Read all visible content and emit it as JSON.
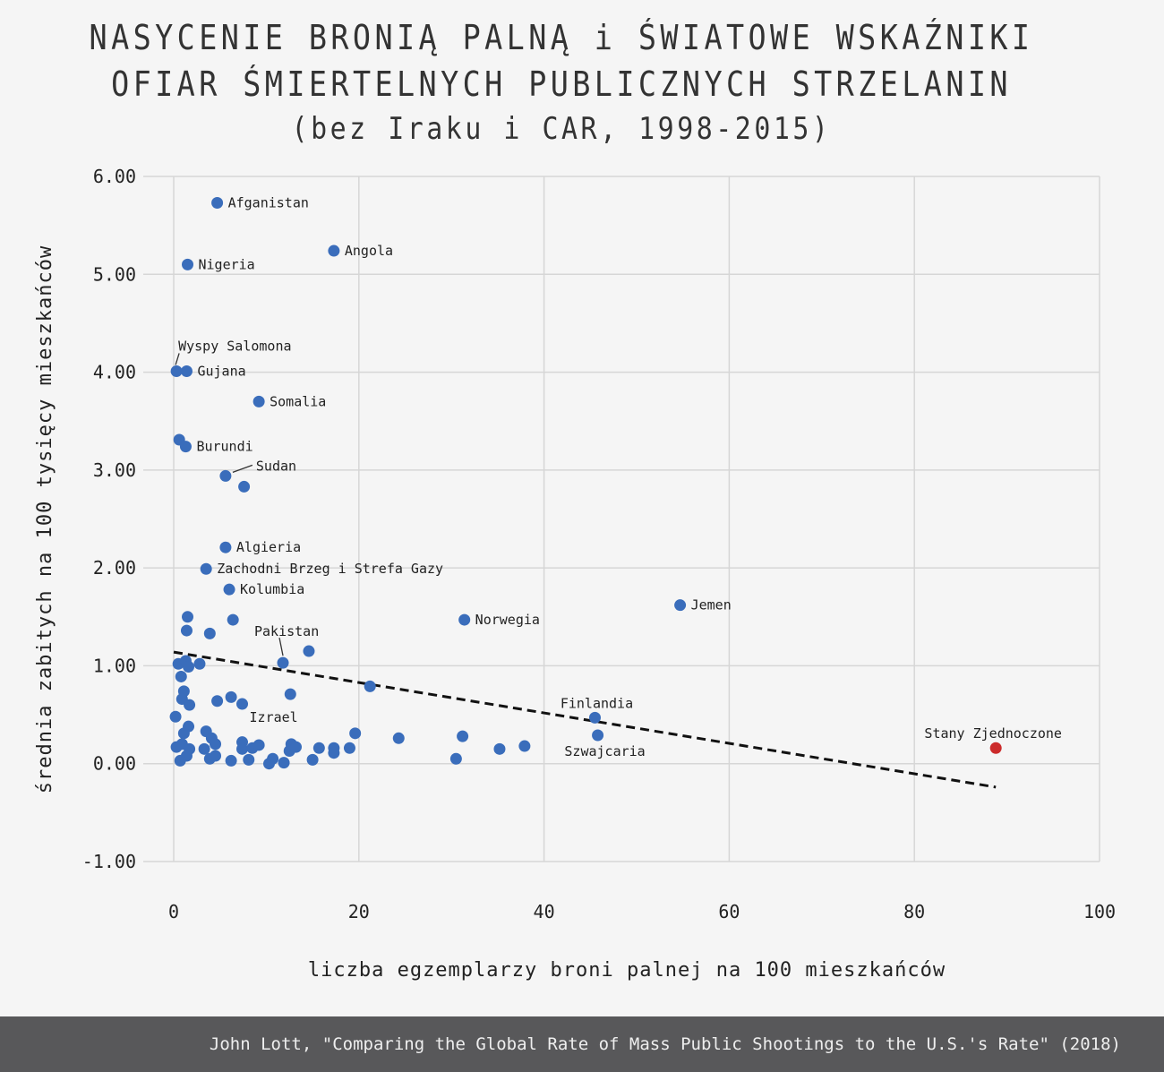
{
  "title_lines": [
    "NASYCENIE BRONIĄ PALNĄ i ŚWIATOWE WSKAŹNIKI",
    "OFIAR ŚMIERTELNYCH PUBLICZNYCH STRZELANIN",
    "(bez Iraku i CAR, 1998-2015)"
  ],
  "footer": "John Lott, \"Comparing the Global Rate of Mass Public Shootings to the U.S.'s Rate\" (2018)",
  "colors": {
    "points": "#3a6dbb",
    "highlight": "#cc2b2b",
    "grid": "#d6d6d6",
    "trend": "#111111"
  },
  "chart_data": {
    "type": "scatter",
    "xlabel": "liczba egzemplarzy broni palnej na 100 mieszkańców",
    "ylabel": "średnia zabitych na 100 tysięcy mieszkańców",
    "xlim": [
      0,
      100
    ],
    "ylim": [
      -1,
      6
    ],
    "xticks": [
      "0",
      "20",
      "40",
      "60",
      "80",
      "100"
    ],
    "yticks": [
      "-1.00",
      "0.00",
      "1.00",
      "2.00",
      "3.00",
      "4.00",
      "5.00",
      "6.00"
    ],
    "grid": true,
    "trendline": {
      "x": [
        0,
        88.8
      ],
      "y": [
        1.14,
        -0.24
      ]
    },
    "labeled_points": [
      {
        "label": "Afganistan",
        "x": 4.7,
        "y": 5.73
      },
      {
        "label": "Angola",
        "x": 17.3,
        "y": 5.24
      },
      {
        "label": "Nigeria",
        "x": 1.5,
        "y": 5.1
      },
      {
        "label": "Wyspy Salomona",
        "x": 0.3,
        "y": 4.01
      },
      {
        "label": "Gujana",
        "x": 1.4,
        "y": 4.01
      },
      {
        "label": "Somalia",
        "x": 9.2,
        "y": 3.7
      },
      {
        "label": "Burundi",
        "x": 1.3,
        "y": 3.24
      },
      {
        "label": "Sudan",
        "x": 5.6,
        "y": 2.94
      },
      {
        "label": "Algieria",
        "x": 5.6,
        "y": 2.21
      },
      {
        "label": "Zachodni Brzeg i Strefa Gazy",
        "x": 3.5,
        "y": 1.99
      },
      {
        "label": "Kolumbia",
        "x": 6.0,
        "y": 1.78
      },
      {
        "label": "Pakistan",
        "x": 11.8,
        "y": 1.03
      },
      {
        "label": "Norwegia",
        "x": 31.4,
        "y": 1.47
      },
      {
        "label": "Jemen",
        "x": 54.7,
        "y": 1.62
      },
      {
        "label": "Izrael",
        "x": 7.4,
        "y": 0.61
      },
      {
        "label": "Finlandia",
        "x": 45.5,
        "y": 0.47
      },
      {
        "label": "Szwajcaria",
        "x": 45.8,
        "y": 0.29
      },
      {
        "label": "Stany Zjednoczone",
        "x": 88.8,
        "y": 0.16,
        "highlight": true
      }
    ],
    "points": [
      [
        0.6,
        3.31
      ],
      [
        7.6,
        2.83
      ],
      [
        1.5,
        1.5
      ],
      [
        1.4,
        1.36
      ],
      [
        6.4,
        1.47
      ],
      [
        3.9,
        1.33
      ],
      [
        14.6,
        1.15
      ],
      [
        12.6,
        0.71
      ],
      [
        21.2,
        0.79
      ],
      [
        4.7,
        0.64
      ],
      [
        6.2,
        0.68
      ],
      [
        0.5,
        1.02
      ],
      [
        1.3,
        1.05
      ],
      [
        1.6,
        0.99
      ],
      [
        2.8,
        1.02
      ],
      [
        0.8,
        0.89
      ],
      [
        1.1,
        0.74
      ],
      [
        0.9,
        0.66
      ],
      [
        0.2,
        0.48
      ],
      [
        1.7,
        0.6
      ],
      [
        1.6,
        0.38
      ],
      [
        1.1,
        0.31
      ],
      [
        3.5,
        0.33
      ],
      [
        4.1,
        0.26
      ],
      [
        4.5,
        0.2
      ],
      [
        0.3,
        0.17
      ],
      [
        0.9,
        0.2
      ],
      [
        1.4,
        0.08
      ],
      [
        0.7,
        0.03
      ],
      [
        1.7,
        0.15
      ],
      [
        3.3,
        0.15
      ],
      [
        3.9,
        0.05
      ],
      [
        4.5,
        0.08
      ],
      [
        6.2,
        0.03
      ],
      [
        7.4,
        0.22
      ],
      [
        7.4,
        0.15
      ],
      [
        8.1,
        0.04
      ],
      [
        8.5,
        0.16
      ],
      [
        9.2,
        0.19
      ],
      [
        10.3,
        0.0
      ],
      [
        10.7,
        0.05
      ],
      [
        11.9,
        0.01
      ],
      [
        12.5,
        0.13
      ],
      [
        12.7,
        0.2
      ],
      [
        13.2,
        0.17
      ],
      [
        15.0,
        0.04
      ],
      [
        15.7,
        0.16
      ],
      [
        17.3,
        0.16
      ],
      [
        17.3,
        0.11
      ],
      [
        19.0,
        0.16
      ],
      [
        19.6,
        0.31
      ],
      [
        24.3,
        0.26
      ],
      [
        31.2,
        0.28
      ],
      [
        30.5,
        0.05
      ],
      [
        35.2,
        0.15
      ],
      [
        37.9,
        0.18
      ]
    ]
  }
}
